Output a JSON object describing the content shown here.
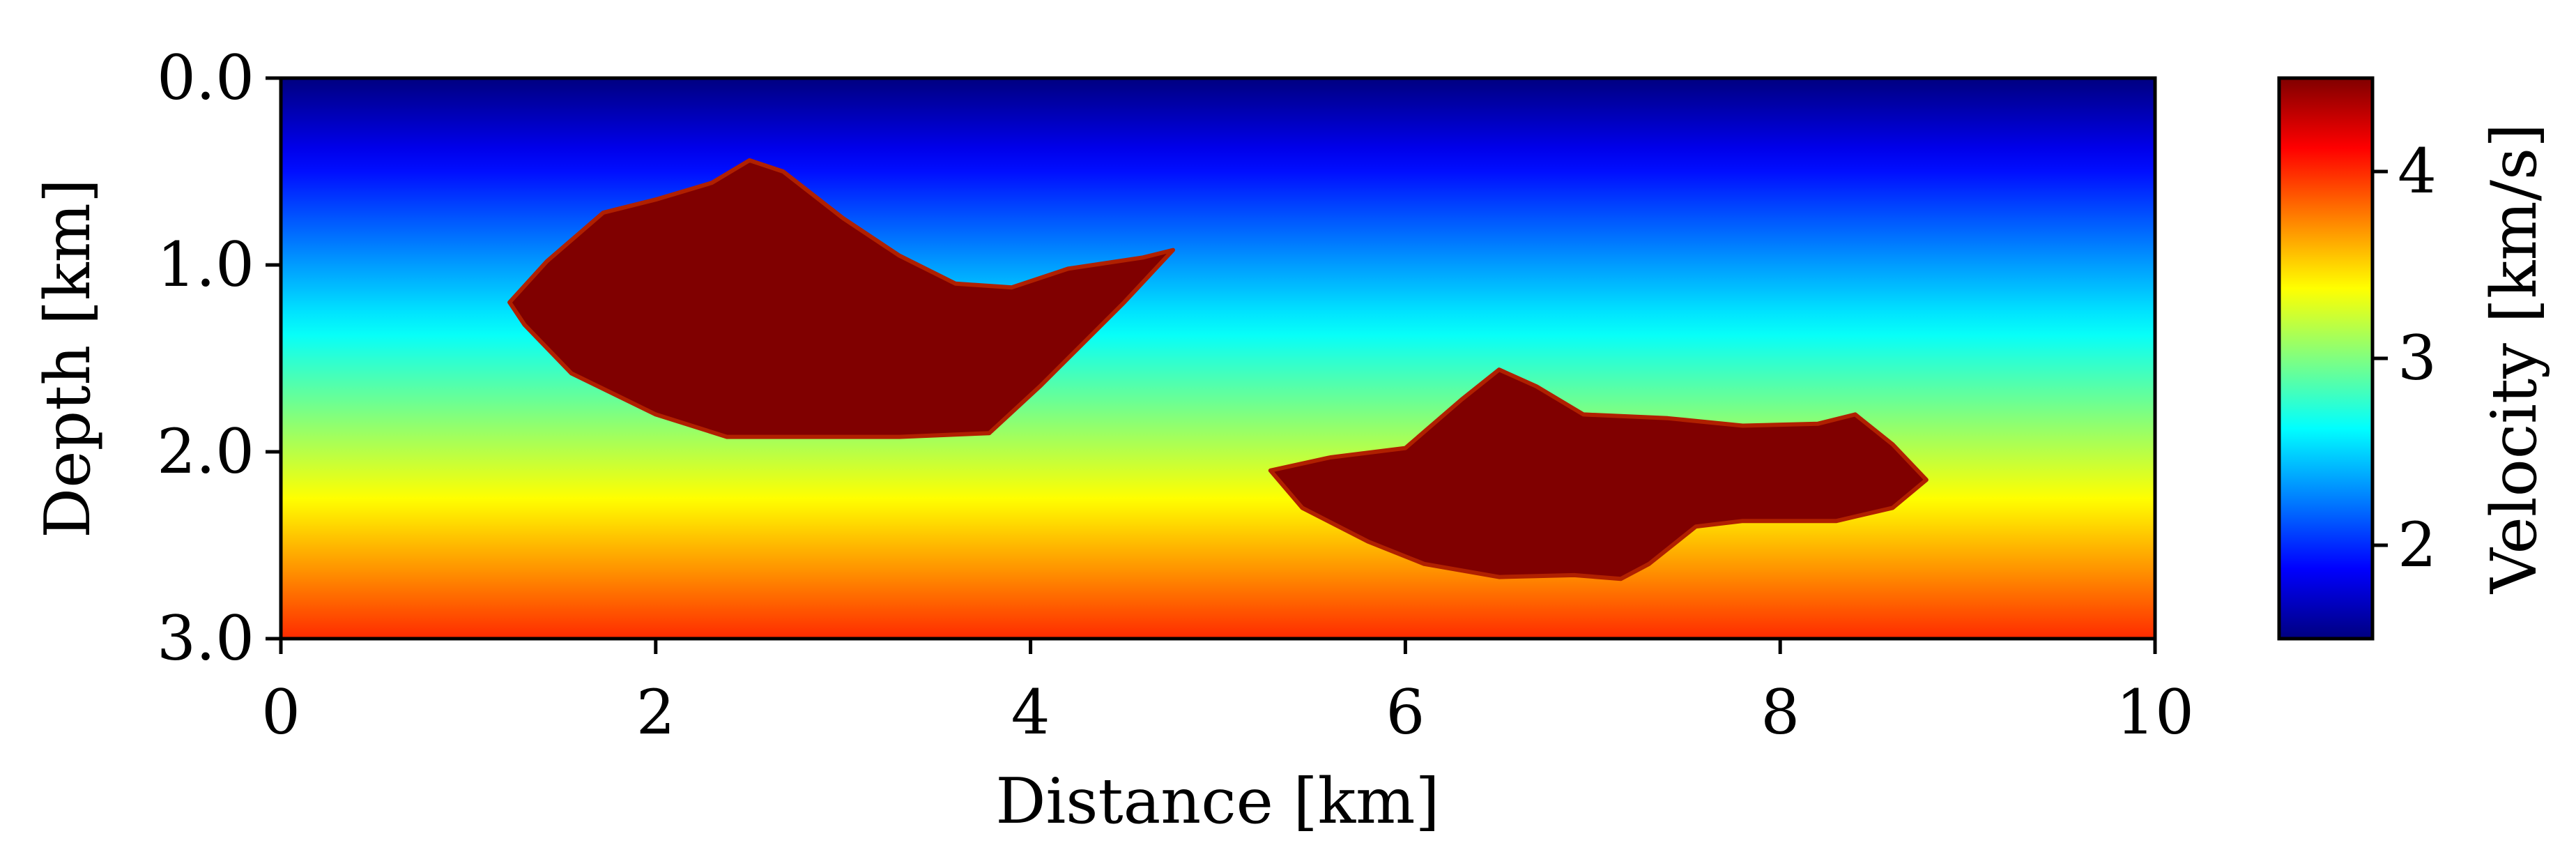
{
  "chart_data": {
    "type": "heatmap",
    "title": "",
    "xlabel": "Distance [km]",
    "ylabel": "Depth [km]",
    "xlim": [
      0,
      10
    ],
    "ylim": [
      0.0,
      3.0
    ],
    "y_inverted": true,
    "xticks": [
      0,
      2,
      4,
      6,
      8,
      10
    ],
    "xtick_labels": [
      "0",
      "2",
      "4",
      "6",
      "8",
      "10"
    ],
    "yticks": [
      0.0,
      1.0,
      2.0,
      3.0
    ],
    "ytick_labels": [
      "0.0",
      "1.0",
      "2.0",
      "3.0"
    ],
    "colormap": "jet",
    "grid": false,
    "background_field": {
      "description_of_gradient": "velocity increases linearly with depth",
      "velocity_at_surface": 1.5,
      "velocity_at_bottom": 4.0
    },
    "anomalies": [
      {
        "name": "",
        "velocity": 4.5,
        "outline": [
          [
            1.22,
            1.2
          ],
          [
            1.42,
            0.98
          ],
          [
            1.72,
            0.72
          ],
          [
            2.0,
            0.65
          ],
          [
            2.3,
            0.56
          ],
          [
            2.5,
            0.44
          ],
          [
            2.68,
            0.5
          ],
          [
            3.0,
            0.75
          ],
          [
            3.3,
            0.95
          ],
          [
            3.6,
            1.1
          ],
          [
            3.9,
            1.12
          ],
          [
            4.2,
            1.02
          ],
          [
            4.6,
            0.96
          ],
          [
            4.76,
            0.92
          ],
          [
            4.5,
            1.2
          ],
          [
            4.25,
            1.45
          ],
          [
            4.05,
            1.65
          ],
          [
            3.78,
            1.9
          ],
          [
            3.3,
            1.92
          ],
          [
            2.7,
            1.92
          ],
          [
            2.38,
            1.92
          ],
          [
            2.0,
            1.8
          ],
          [
            1.55,
            1.58
          ],
          [
            1.3,
            1.32
          ]
        ]
      },
      {
        "name": "",
        "velocity": 4.5,
        "outline": [
          [
            5.28,
            2.1
          ],
          [
            5.6,
            2.03
          ],
          [
            6.0,
            1.98
          ],
          [
            6.3,
            1.72
          ],
          [
            6.5,
            1.56
          ],
          [
            6.7,
            1.65
          ],
          [
            6.95,
            1.8
          ],
          [
            7.4,
            1.82
          ],
          [
            7.8,
            1.86
          ],
          [
            8.2,
            1.85
          ],
          [
            8.4,
            1.8
          ],
          [
            8.6,
            1.96
          ],
          [
            8.78,
            2.15
          ],
          [
            8.6,
            2.3
          ],
          [
            8.3,
            2.37
          ],
          [
            7.8,
            2.37
          ],
          [
            7.55,
            2.4
          ],
          [
            7.3,
            2.6
          ],
          [
            7.15,
            2.68
          ],
          [
            6.9,
            2.66
          ],
          [
            6.5,
            2.67
          ],
          [
            6.1,
            2.6
          ],
          [
            5.8,
            2.48
          ],
          [
            5.45,
            2.3
          ]
        ]
      }
    ],
    "colorbar": {
      "label": "Velocity [km/s]",
      "range": [
        1.5,
        4.5
      ],
      "ticks": [
        2,
        3,
        4
      ],
      "tick_labels": [
        "2",
        "3",
        "4"
      ]
    }
  }
}
